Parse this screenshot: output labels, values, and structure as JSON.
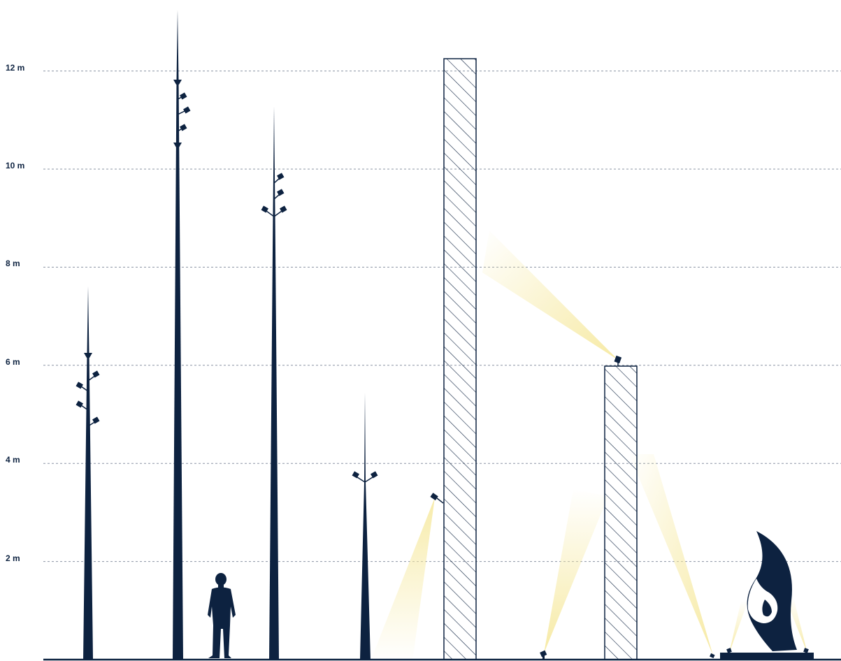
{
  "colors": {
    "ink": "#0d2240",
    "grid": "#8a93a3",
    "light": "#f6e9a0",
    "background": "#ffffff"
  },
  "scale": {
    "unit": "m",
    "levels": [
      {
        "value": 12,
        "label": "12 m"
      },
      {
        "value": 10,
        "label": "10 m"
      },
      {
        "value": 8,
        "label": "8 m"
      },
      {
        "value": 6,
        "label": "6 m"
      },
      {
        "value": 4,
        "label": "4 m"
      },
      {
        "value": 2,
        "label": "2 m"
      }
    ]
  },
  "objects": [
    {
      "name": "pole-1",
      "kind": "lighting-mast",
      "height_m": 7.6
    },
    {
      "name": "pole-2",
      "kind": "lighting-mast",
      "height_m": 13.2
    },
    {
      "name": "person",
      "kind": "human-silhouette",
      "height_m": 1.75
    },
    {
      "name": "pole-3",
      "kind": "lighting-mast",
      "height_m": 11.3
    },
    {
      "name": "pole-4",
      "kind": "lighting-mast",
      "height_m": 5.4
    },
    {
      "name": "wall-tall",
      "kind": "hatched-wall",
      "height_m": 12.2
    },
    {
      "name": "wall-short",
      "kind": "hatched-wall",
      "height_m": 6
    },
    {
      "name": "sculpture",
      "kind": "flame-sculpture",
      "height_m": 2.6
    }
  ]
}
